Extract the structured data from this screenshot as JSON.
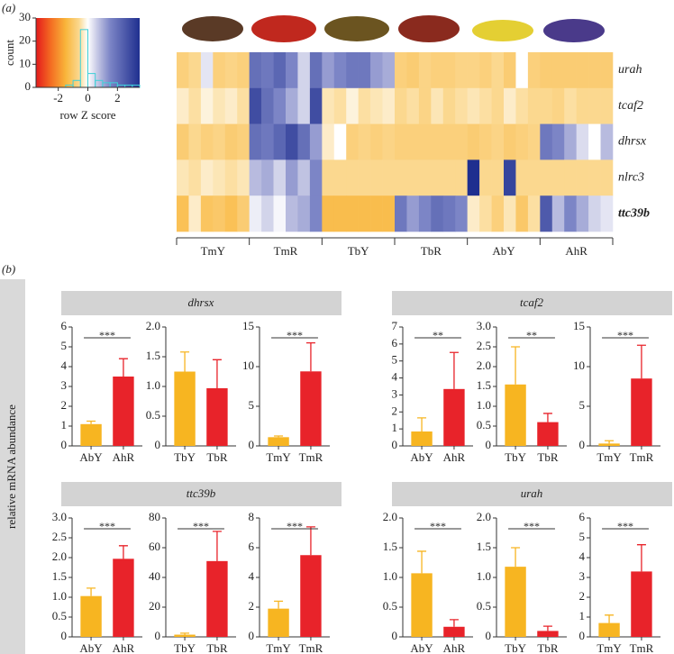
{
  "panel_labels": [
    "(a)",
    "(b)"
  ],
  "panel_b": {
    "ylabel": "relative mRNA abundance"
  },
  "chart_data": [
    {
      "type": "heatmap",
      "rows": [
        "urah",
        "tcaf2",
        "dhrsx",
        "nlrc3",
        "ttc39b"
      ],
      "row_label_colors": [
        "#222222",
        "#222222",
        "#222222",
        "#222222",
        "#e8232a"
      ],
      "groups": [
        "TmY",
        "TmR",
        "TbY",
        "TbR",
        "AbY",
        "AhR"
      ],
      "colorscale": [
        [
          -3.5,
          "#e31a1c"
        ],
        [
          -2.5,
          "#f46d22"
        ],
        [
          -1.5,
          "#f9b53a"
        ],
        [
          -0.6,
          "#fbd88f"
        ],
        [
          -0.2,
          "#fdf3dc"
        ],
        [
          0,
          "#ffffff"
        ],
        [
          0.6,
          "#c9cbe6"
        ],
        [
          1.5,
          "#7c85c6"
        ],
        [
          3.5,
          "#1f2f8f"
        ]
      ],
      "values": [
        [
          -0.8,
          -0.6,
          0.3,
          -0.8,
          -0.7,
          -0.8,
          2,
          1.8,
          2.2,
          1.5,
          0.5,
          2,
          1.2,
          1.5,
          1.8,
          1.8,
          1.2,
          1,
          -0.8,
          -0.9,
          -0.7,
          -0.8,
          -0.8,
          -0.7,
          -0.7,
          -0.8,
          -0.6,
          -0.9,
          0,
          -0.8,
          -0.9,
          -0.9,
          -0.9,
          -0.9,
          -0.9,
          -0.9
        ],
        [
          -0.3,
          -0.5,
          -0.2,
          -0.4,
          -0.3,
          -0.5,
          2.8,
          2,
          1.5,
          1,
          0.5,
          2.8,
          -0.4,
          -0.5,
          -0.2,
          -0.5,
          -0.4,
          -0.3,
          -0.6,
          -0.5,
          -0.7,
          -0.4,
          -0.6,
          -0.5,
          -0.4,
          -0.5,
          -0.6,
          -0.3,
          -0.5,
          -0.6,
          -0.6,
          -0.7,
          -0.5,
          -0.6,
          -0.6,
          -0.6
        ],
        [
          -0.9,
          -0.6,
          -0.8,
          -0.7,
          -0.9,
          -0.8,
          2,
          1.8,
          2.2,
          2.8,
          2,
          1.2,
          -0.3,
          0,
          -0.8,
          -0.7,
          -0.8,
          -0.7,
          -0.8,
          -0.8,
          -0.8,
          -0.8,
          -0.8,
          -0.8,
          -0.9,
          -0.8,
          -0.7,
          -0.9,
          -0.8,
          -0.7,
          1.8,
          1.5,
          1,
          0.4,
          0,
          0.8
        ],
        [
          -0.4,
          -0.5,
          -0.3,
          -0.4,
          -0.5,
          -0.4,
          0.8,
          1,
          0.5,
          1.2,
          0.7,
          1.5,
          -0.6,
          -0.6,
          -0.6,
          -0.6,
          -0.6,
          -0.6,
          -0.6,
          -0.6,
          -0.6,
          -0.6,
          -0.6,
          -0.6,
          3.5,
          -0.6,
          -0.6,
          3,
          -0.6,
          -0.6,
          -0.6,
          -0.6,
          -0.6,
          -0.6,
          -0.6,
          -0.6
        ],
        [
          -1.2,
          -0.3,
          -1.1,
          -1,
          -1.2,
          -0.9,
          0.2,
          0.5,
          0.1,
          0.8,
          1,
          1.5,
          -1.3,
          -1.3,
          -1.3,
          -1.3,
          -1.3,
          -1.3,
          1.8,
          1.2,
          1.5,
          2,
          1.8,
          1.5,
          -0.3,
          -0.5,
          -0.8,
          -0.4,
          -1,
          -0.5,
          2.5,
          0.8,
          1.5,
          1,
          0.5,
          0.3
        ]
      ]
    },
    {
      "type": "histogram",
      "xlabel": "row Z score",
      "ylabel": "count",
      "xlim": [
        -3.5,
        3.5
      ],
      "xticks": [
        -2,
        0,
        2
      ],
      "ylim": [
        0,
        30
      ],
      "yticks": [
        0,
        10,
        20,
        30
      ],
      "bins": [
        -1.5,
        -1,
        -0.5,
        0,
        0.5,
        1,
        1.5,
        2,
        2.5,
        3,
        3.5
      ],
      "counts": [
        1,
        3,
        25,
        6,
        3,
        2,
        2,
        1,
        1,
        1
      ],
      "color": "#3fd0d8"
    },
    {
      "type": "bar",
      "title": "dhrsx",
      "colors": [
        "#f7b521",
        "#e8232a"
      ],
      "panels": [
        {
          "categories": [
            "AbY",
            "AhR"
          ],
          "values": [
            1.1,
            3.5
          ],
          "errors": [
            0.15,
            0.9
          ],
          "ylim": [
            0,
            6
          ],
          "yticks": [
            0,
            1,
            2,
            3,
            4,
            5,
            6
          ],
          "annotation": "***"
        },
        {
          "categories": [
            "TbY",
            "TbR"
          ],
          "values": [
            1.25,
            0.97
          ],
          "errors": [
            0.33,
            0.48
          ],
          "ylim": [
            0,
            2
          ],
          "yticks": [
            0,
            0.5,
            {
              "value": 1,
              "label": "1.0"
            },
            1.5,
            {
              "value": 2,
              "label": "2.0"
            }
          ]
        },
        {
          "categories": [
            "TmY",
            "TmR"
          ],
          "values": [
            1.1,
            9.4
          ],
          "errors": [
            0.15,
            3.6
          ],
          "ylim": [
            0,
            15
          ],
          "yticks": [
            0,
            5,
            10,
            15
          ],
          "annotation": "***"
        }
      ]
    },
    {
      "type": "bar",
      "title": "tcaf2",
      "colors": [
        "#f7b521",
        "#e8232a"
      ],
      "panels": [
        {
          "categories": [
            "AbY",
            "AhR"
          ],
          "values": [
            0.85,
            3.35
          ],
          "errors": [
            0.8,
            2.15
          ],
          "ylim": [
            0,
            7
          ],
          "yticks": [
            0,
            1,
            2,
            3,
            4,
            5,
            6,
            7
          ],
          "annotation": "**"
        },
        {
          "categories": [
            "TbY",
            "TbR"
          ],
          "values": [
            1.55,
            0.6
          ],
          "errors": [
            0.95,
            0.22
          ],
          "ylim": [
            0,
            3
          ],
          "yticks": [
            0,
            0.5,
            {
              "value": 1,
              "label": "1.0"
            },
            1.5,
            {
              "value": 2,
              "label": "2.0"
            },
            2.5,
            {
              "value": 3,
              "label": "3.0"
            }
          ],
          "annotation": "**"
        },
        {
          "categories": [
            "TmY",
            "TmR"
          ],
          "values": [
            0.3,
            8.5
          ],
          "errors": [
            0.35,
            4.2
          ],
          "ylim": [
            0,
            15
          ],
          "yticks": [
            0,
            5,
            10,
            15
          ],
          "annotation": "***"
        }
      ]
    },
    {
      "type": "bar",
      "title": "ttc39b",
      "colors": [
        "#f7b521",
        "#e8232a"
      ],
      "panels": [
        {
          "categories": [
            "AbY",
            "AhR"
          ],
          "values": [
            1.03,
            1.97
          ],
          "errors": [
            0.2,
            0.33
          ],
          "ylim": [
            0,
            3
          ],
          "yticks": [
            0,
            0.5,
            {
              "value": 1,
              "label": "1.0"
            },
            1.5,
            {
              "value": 2,
              "label": "2.0"
            },
            2.5,
            {
              "value": 3,
              "label": "3.0"
            }
          ],
          "annotation": "***"
        },
        {
          "categories": [
            "TbY",
            "TbR"
          ],
          "values": [
            1.5,
            51
          ],
          "errors": [
            1,
            20
          ],
          "ylim": [
            0,
            80
          ],
          "yticks": [
            0,
            20,
            40,
            60,
            80
          ],
          "annotation": "***"
        },
        {
          "categories": [
            "TmY",
            "TmR"
          ],
          "values": [
            1.9,
            5.5
          ],
          "errors": [
            0.5,
            1.9
          ],
          "ylim": [
            0,
            8
          ],
          "yticks": [
            0,
            2,
            4,
            6,
            8
          ],
          "annotation": "***"
        }
      ]
    },
    {
      "type": "bar",
      "title": "urah",
      "colors": [
        "#f7b521",
        "#e8232a"
      ],
      "panels": [
        {
          "categories": [
            "AbY",
            "AhR"
          ],
          "values": [
            1.07,
            0.17
          ],
          "errors": [
            0.37,
            0.12
          ],
          "ylim": [
            0,
            2
          ],
          "yticks": [
            0,
            0.5,
            {
              "value": 1,
              "label": "1.0"
            },
            1.5,
            {
              "value": 2,
              "label": "2.0"
            }
          ],
          "annotation": "***"
        },
        {
          "categories": [
            "TbY",
            "TbR"
          ],
          "values": [
            1.18,
            0.1
          ],
          "errors": [
            0.32,
            0.08
          ],
          "ylim": [
            0,
            2
          ],
          "yticks": [
            0,
            0.5,
            {
              "value": 1,
              "label": "1.0"
            },
            1.5,
            {
              "value": 2,
              "label": "2.0"
            }
          ],
          "annotation": "***"
        },
        {
          "categories": [
            "TmY",
            "TmR"
          ],
          "values": [
            0.7,
            3.3
          ],
          "errors": [
            0.4,
            1.35
          ],
          "ylim": [
            0,
            6
          ],
          "yticks": [
            0,
            1,
            2,
            3,
            4,
            5,
            6
          ],
          "annotation": "***"
        }
      ]
    }
  ]
}
